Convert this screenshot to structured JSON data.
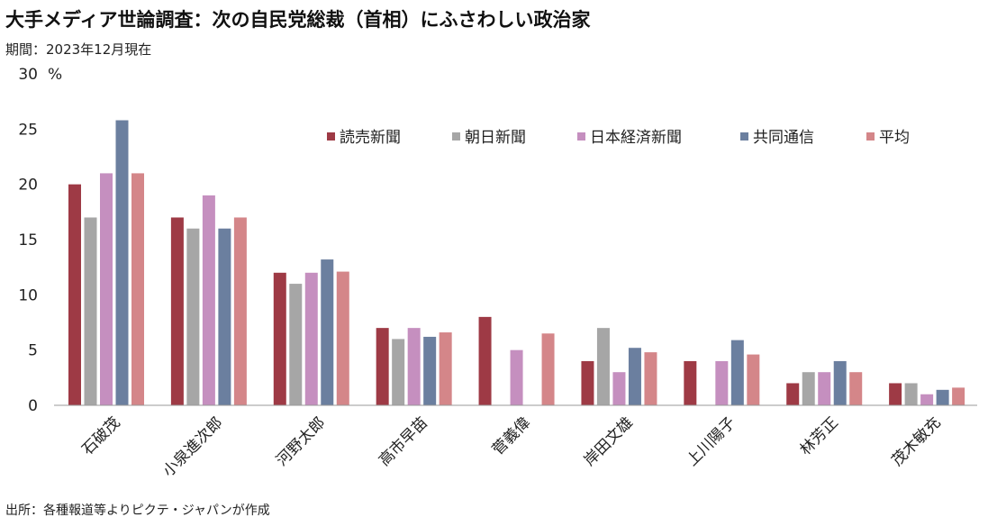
{
  "title": "大手メディア世論調査：次の自民党総裁（首相）にふさわしい政治家",
  "subtitle": "期間：2023年12月現在",
  "source": "出所：各種報道等よりピクテ・ジャパンが作成",
  "colors": {
    "読売新聞": "#9e3a45",
    "朝日新聞": "#a6a6a6",
    "日本経済新聞": "#c58fbf",
    "共同通信": "#6b7f9f",
    "平均": "#d48689"
  },
  "chart_data": {
    "type": "bar",
    "title": "大手メディア世論調査：次の自民党総裁（首相）にふさわしい政治家",
    "ylabel": "%",
    "ylim": [
      0,
      30
    ],
    "yticks": [
      0,
      5,
      10,
      15,
      20,
      25,
      30
    ],
    "grid": false,
    "legend_position": "top-right",
    "categories": [
      "石破茂",
      "小泉進次郎",
      "河野太郎",
      "高市早苗",
      "菅義偉",
      "岸田文雄",
      "上川陽子",
      "林芳正",
      "茂木敏充"
    ],
    "series": [
      {
        "name": "読売新聞",
        "values": [
          20,
          17,
          12,
          7,
          8,
          4,
          4,
          2,
          2
        ]
      },
      {
        "name": "朝日新聞",
        "values": [
          17,
          16,
          11,
          6,
          null,
          7,
          null,
          3,
          2
        ]
      },
      {
        "name": "日本経済新聞",
        "values": [
          21,
          19,
          12,
          7,
          5,
          3,
          4,
          3,
          1
        ]
      },
      {
        "name": "共同通信",
        "values": [
          25.8,
          16,
          13.2,
          6.2,
          null,
          5.2,
          5.9,
          4,
          1.4
        ]
      },
      {
        "name": "平均",
        "values": [
          21,
          17,
          12.1,
          6.6,
          6.5,
          4.8,
          4.6,
          3,
          1.6
        ]
      }
    ]
  }
}
